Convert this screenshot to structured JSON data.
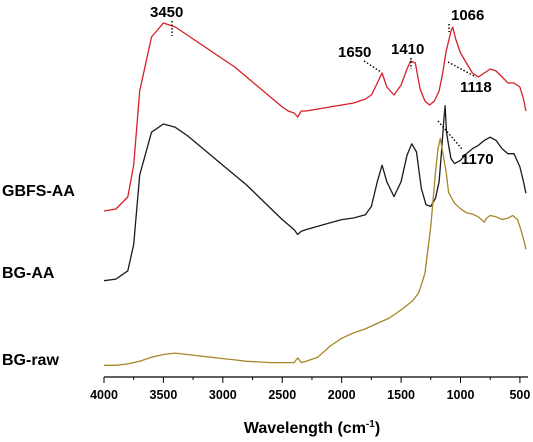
{
  "chart_data": {
    "type": "line",
    "xlabel": {
      "text": "Wavelength (cm",
      "superscript": "-1",
      "suffix": ")"
    },
    "xlim": [
      4000,
      450
    ],
    "x_reversed": true,
    "x_ticks": [
      "4000",
      "3500",
      "3000",
      "2500",
      "2000",
      "1500",
      "1000",
      "500"
    ],
    "y_axis": "none",
    "grid": false,
    "legend": "none",
    "series": [
      {
        "name": "GBFS-AA",
        "color": "#d61f26",
        "points": [
          [
            4000,
            0.02
          ],
          [
            3900,
            0.03
          ],
          [
            3800,
            0.09
          ],
          [
            3750,
            0.25
          ],
          [
            3700,
            0.62
          ],
          [
            3600,
            0.89
          ],
          [
            3500,
            0.96
          ],
          [
            3400,
            0.94
          ],
          [
            3300,
            0.9
          ],
          [
            3200,
            0.86
          ],
          [
            3100,
            0.82
          ],
          [
            3000,
            0.78
          ],
          [
            2900,
            0.74
          ],
          [
            2800,
            0.69
          ],
          [
            2700,
            0.64
          ],
          [
            2600,
            0.59
          ],
          [
            2500,
            0.54
          ],
          [
            2450,
            0.52
          ],
          [
            2400,
            0.51
          ],
          [
            2370,
            0.49
          ],
          [
            2340,
            0.52
          ],
          [
            2300,
            0.52
          ],
          [
            2200,
            0.53
          ],
          [
            2100,
            0.54
          ],
          [
            2000,
            0.55
          ],
          [
            1900,
            0.56
          ],
          [
            1800,
            0.58
          ],
          [
            1750,
            0.6
          ],
          [
            1700,
            0.66
          ],
          [
            1660,
            0.71
          ],
          [
            1620,
            0.64
          ],
          [
            1560,
            0.6
          ],
          [
            1500,
            0.65
          ],
          [
            1450,
            0.73
          ],
          [
            1420,
            0.77
          ],
          [
            1380,
            0.76
          ],
          [
            1340,
            0.63
          ],
          [
            1300,
            0.57
          ],
          [
            1260,
            0.55
          ],
          [
            1220,
            0.57
          ],
          [
            1180,
            0.62
          ],
          [
            1150,
            0.71
          ],
          [
            1120,
            0.82
          ],
          [
            1080,
            0.92
          ],
          [
            1066,
            0.94
          ],
          [
            1040,
            0.88
          ],
          [
            1000,
            0.81
          ],
          [
            950,
            0.76
          ],
          [
            900,
            0.71
          ],
          [
            850,
            0.69
          ],
          [
            800,
            0.71
          ],
          [
            750,
            0.73
          ],
          [
            700,
            0.72
          ],
          [
            650,
            0.69
          ],
          [
            600,
            0.66
          ],
          [
            550,
            0.66
          ],
          [
            500,
            0.64
          ],
          [
            470,
            0.58
          ],
          [
            450,
            0.52
          ]
        ]
      },
      {
        "name": "BG-AA",
        "color": "#1a1a1a",
        "points": [
          [
            4000,
            0.02
          ],
          [
            3900,
            0.03
          ],
          [
            3800,
            0.08
          ],
          [
            3750,
            0.24
          ],
          [
            3700,
            0.66
          ],
          [
            3600,
            0.92
          ],
          [
            3500,
            0.97
          ],
          [
            3400,
            0.95
          ],
          [
            3300,
            0.9
          ],
          [
            3200,
            0.84
          ],
          [
            3100,
            0.78
          ],
          [
            3000,
            0.72
          ],
          [
            2900,
            0.66
          ],
          [
            2800,
            0.6
          ],
          [
            2700,
            0.53
          ],
          [
            2600,
            0.46
          ],
          [
            2500,
            0.39
          ],
          [
            2450,
            0.36
          ],
          [
            2400,
            0.33
          ],
          [
            2370,
            0.3
          ],
          [
            2340,
            0.32
          ],
          [
            2300,
            0.33
          ],
          [
            2200,
            0.35
          ],
          [
            2100,
            0.37
          ],
          [
            2000,
            0.39
          ],
          [
            1900,
            0.4
          ],
          [
            1800,
            0.42
          ],
          [
            1750,
            0.47
          ],
          [
            1700,
            0.62
          ],
          [
            1660,
            0.72
          ],
          [
            1620,
            0.62
          ],
          [
            1560,
            0.53
          ],
          [
            1500,
            0.62
          ],
          [
            1450,
            0.78
          ],
          [
            1410,
            0.85
          ],
          [
            1370,
            0.8
          ],
          [
            1330,
            0.58
          ],
          [
            1290,
            0.48
          ],
          [
            1250,
            0.47
          ],
          [
            1210,
            0.52
          ],
          [
            1180,
            0.62
          ],
          [
            1160,
            0.8
          ],
          [
            1140,
            1.0
          ],
          [
            1130,
            1.08
          ],
          [
            1118,
            0.92
          ],
          [
            1100,
            0.84
          ],
          [
            1080,
            0.76
          ],
          [
            1050,
            0.73
          ],
          [
            1000,
            0.75
          ],
          [
            950,
            0.79
          ],
          [
            900,
            0.82
          ],
          [
            850,
            0.84
          ],
          [
            800,
            0.87
          ],
          [
            750,
            0.89
          ],
          [
            700,
            0.87
          ],
          [
            650,
            0.82
          ],
          [
            600,
            0.79
          ],
          [
            550,
            0.79
          ],
          [
            500,
            0.71
          ],
          [
            470,
            0.62
          ],
          [
            450,
            0.55
          ]
        ]
      },
      {
        "name": "BG-raw",
        "color": "#a8862a",
        "points": [
          [
            4000,
            0.02
          ],
          [
            3900,
            0.02
          ],
          [
            3800,
            0.03
          ],
          [
            3700,
            0.05
          ],
          [
            3600,
            0.08
          ],
          [
            3500,
            0.1
          ],
          [
            3400,
            0.11
          ],
          [
            3300,
            0.1
          ],
          [
            3200,
            0.09
          ],
          [
            3100,
            0.08
          ],
          [
            3000,
            0.07
          ],
          [
            2900,
            0.06
          ],
          [
            2800,
            0.05
          ],
          [
            2700,
            0.045
          ],
          [
            2600,
            0.04
          ],
          [
            2500,
            0.04
          ],
          [
            2400,
            0.04
          ],
          [
            2370,
            0.075
          ],
          [
            2340,
            0.04
          ],
          [
            2300,
            0.05
          ],
          [
            2200,
            0.08
          ],
          [
            2100,
            0.16
          ],
          [
            2000,
            0.22
          ],
          [
            1900,
            0.26
          ],
          [
            1800,
            0.29
          ],
          [
            1700,
            0.33
          ],
          [
            1600,
            0.37
          ],
          [
            1500,
            0.43
          ],
          [
            1400,
            0.5
          ],
          [
            1350,
            0.56
          ],
          [
            1300,
            0.7
          ],
          [
            1250,
            1.05
          ],
          [
            1210,
            1.45
          ],
          [
            1190,
            1.62
          ],
          [
            1170,
            1.7
          ],
          [
            1150,
            1.6
          ],
          [
            1120,
            1.45
          ],
          [
            1100,
            1.3
          ],
          [
            1050,
            1.22
          ],
          [
            1000,
            1.18
          ],
          [
            950,
            1.15
          ],
          [
            900,
            1.14
          ],
          [
            850,
            1.12
          ],
          [
            800,
            1.08
          ],
          [
            780,
            1.11
          ],
          [
            750,
            1.13
          ],
          [
            700,
            1.12
          ],
          [
            650,
            1.1
          ],
          [
            600,
            1.11
          ],
          [
            560,
            1.13
          ],
          [
            520,
            1.1
          ],
          [
            490,
            1.02
          ],
          [
            460,
            0.92
          ],
          [
            450,
            0.88
          ]
        ]
      }
    ],
    "annotations": [
      {
        "label": "3450",
        "x": 3450
      },
      {
        "label": "1650",
        "x": 1650
      },
      {
        "label": "1410",
        "x": 1410
      },
      {
        "label": "1066",
        "x": 1066
      },
      {
        "label": "1118",
        "x": 1118
      },
      {
        "label": "1170",
        "x": 1170
      }
    ]
  }
}
